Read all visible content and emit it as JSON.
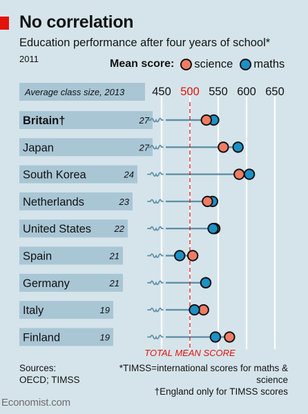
{
  "title": "No correlation",
  "subtitle": "Education performance after four years of school*",
  "year": "2011",
  "legend": {
    "label": "Mean score:",
    "science": "science",
    "maths": "maths"
  },
  "colors": {
    "science": "#f07c63",
    "maths": "#1b91c7",
    "bar": "#a9c6d5",
    "red": "#e3120b",
    "line": "#5f8fa5"
  },
  "footer": {
    "sources_1": "Sources:",
    "sources_2": "OECD; TIMSS",
    "note_1": "*TIMSS=international scores for maths & science",
    "note_2": "†England only for TIMSS scores",
    "brand": "Economist.com"
  },
  "chart_data": {
    "type": "dot",
    "title": "No correlation",
    "subtitle": "Education performance after four years of school*",
    "bar_header": "Average class size, 2013",
    "x_ticks": [
      450,
      500,
      550,
      600,
      650
    ],
    "x_range": [
      450,
      650
    ],
    "axis_break": true,
    "reference_line": {
      "value": 500,
      "label": "TOTAL MEAN SCORE"
    },
    "categories": [
      "Britain†",
      "Japan",
      "South Korea",
      "Netherlands",
      "United States",
      "Spain",
      "Germany",
      "Italy",
      "Finland"
    ],
    "class_size": [
      27,
      27,
      24,
      23,
      22,
      21,
      21,
      19,
      19
    ],
    "series": [
      {
        "name": "science",
        "values": [
          529,
          559,
          587,
          531,
          544,
          505,
          528,
          524,
          570
        ]
      },
      {
        "name": "maths",
        "values": [
          542,
          585,
          605,
          540,
          541,
          482,
          528,
          508,
          545
        ]
      }
    ],
    "grid": true,
    "legend_position": "top-right"
  }
}
